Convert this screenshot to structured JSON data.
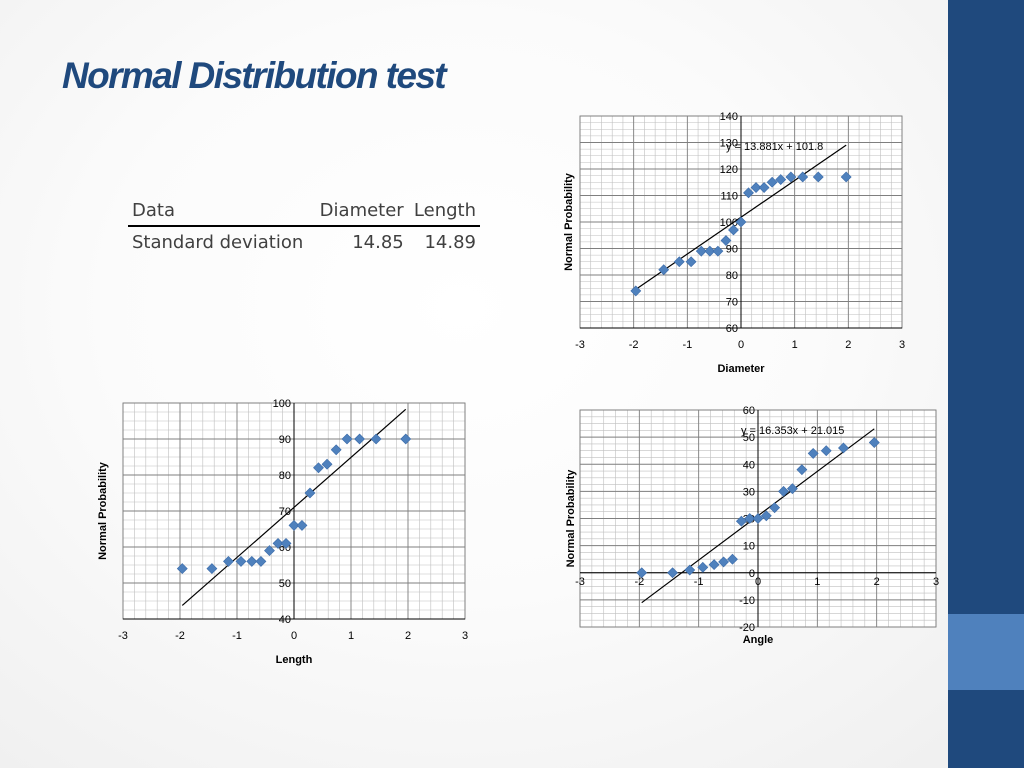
{
  "slide": {
    "title": "Normal Distribution test",
    "colors": {
      "title": "#1f497d",
      "side_bar": "#1f497d",
      "side_accent": "#4f81bd",
      "marker": "#4f81bd",
      "trendline": "#000000"
    }
  },
  "table": {
    "headers": [
      "Data",
      "Diameter",
      "Length"
    ],
    "rows": [
      [
        "Standard deviation",
        "14.85",
        "14.89"
      ]
    ]
  },
  "chart_data": [
    {
      "type": "scatter",
      "name": "diameter",
      "title": "",
      "xlabel": "Diameter",
      "ylabel": "Normal Probability",
      "xlim": [
        -3,
        3
      ],
      "ylim": [
        60,
        140
      ],
      "xticks": [
        -3,
        -2,
        -1,
        0,
        1,
        2,
        3
      ],
      "yticks": [
        60,
        70,
        80,
        90,
        100,
        110,
        120,
        130,
        140
      ],
      "grid": true,
      "legend": "none",
      "trendline": {
        "equation": "y = 13.881x + 101.8",
        "slope": 13.881,
        "intercept": 101.8,
        "x_range": [
          -1.96,
          1.96
        ]
      },
      "points": [
        [
          -1.96,
          74
        ],
        [
          -1.44,
          82
        ],
        [
          -1.15,
          85
        ],
        [
          -0.93,
          85
        ],
        [
          -0.74,
          89
        ],
        [
          -0.58,
          89
        ],
        [
          -0.43,
          89
        ],
        [
          -0.28,
          93
        ],
        [
          -0.14,
          97
        ],
        [
          0,
          100
        ],
        [
          0.14,
          111
        ],
        [
          0.28,
          113
        ],
        [
          0.43,
          113
        ],
        [
          0.58,
          115
        ],
        [
          0.74,
          116
        ],
        [
          0.93,
          117
        ],
        [
          1.15,
          117
        ],
        [
          1.44,
          117
        ],
        [
          1.96,
          117
        ]
      ]
    },
    {
      "type": "scatter",
      "name": "length",
      "title": "",
      "xlabel": "Length",
      "ylabel": "Normal Probability",
      "xlim": [
        -3,
        3
      ],
      "ylim": [
        40,
        100
      ],
      "xticks": [
        -3,
        -2,
        -1,
        0,
        1,
        2,
        3
      ],
      "yticks": [
        40,
        50,
        60,
        70,
        80,
        90,
        100
      ],
      "grid": true,
      "legend": "none",
      "trendline": {
        "equation": "",
        "slope": 13.9,
        "intercept": 71,
        "x_range": [
          -1.96,
          1.96
        ]
      },
      "points": [
        [
          -1.96,
          54
        ],
        [
          -1.44,
          54
        ],
        [
          -1.15,
          56
        ],
        [
          -0.93,
          56
        ],
        [
          -0.74,
          56
        ],
        [
          -0.58,
          56
        ],
        [
          -0.43,
          59
        ],
        [
          -0.28,
          61
        ],
        [
          -0.14,
          61
        ],
        [
          0,
          66
        ],
        [
          0.14,
          66
        ],
        [
          0.28,
          75
        ],
        [
          0.43,
          82
        ],
        [
          0.58,
          83
        ],
        [
          0.74,
          87
        ],
        [
          0.93,
          90
        ],
        [
          1.15,
          90
        ],
        [
          1.44,
          90
        ],
        [
          1.96,
          90
        ]
      ]
    },
    {
      "type": "scatter",
      "name": "angle",
      "title": "",
      "xlabel": "Angle",
      "ylabel": "Normal Probability",
      "xlim": [
        -3,
        3
      ],
      "ylim": [
        -20,
        60
      ],
      "xticks": [
        -3,
        -2,
        -1,
        0,
        1,
        2,
        3
      ],
      "yticks": [
        -20,
        -10,
        0,
        10,
        20,
        30,
        40,
        50,
        60
      ],
      "grid": true,
      "legend": "none",
      "trendline": {
        "equation": "y = 16.353x + 21.015",
        "slope": 16.353,
        "intercept": 21.015,
        "x_range": [
          -1.96,
          1.96
        ]
      },
      "points": [
        [
          -1.96,
          0
        ],
        [
          -1.44,
          0
        ],
        [
          -1.15,
          1
        ],
        [
          -0.93,
          2
        ],
        [
          -0.74,
          3
        ],
        [
          -0.58,
          4
        ],
        [
          -0.43,
          5
        ],
        [
          -0.28,
          19
        ],
        [
          -0.14,
          20
        ],
        [
          0,
          20
        ],
        [
          0.14,
          21
        ],
        [
          0.28,
          24
        ],
        [
          0.43,
          30
        ],
        [
          0.58,
          31
        ],
        [
          0.74,
          38
        ],
        [
          0.93,
          44
        ],
        [
          1.15,
          45
        ],
        [
          1.44,
          46
        ],
        [
          1.96,
          48
        ]
      ]
    }
  ]
}
